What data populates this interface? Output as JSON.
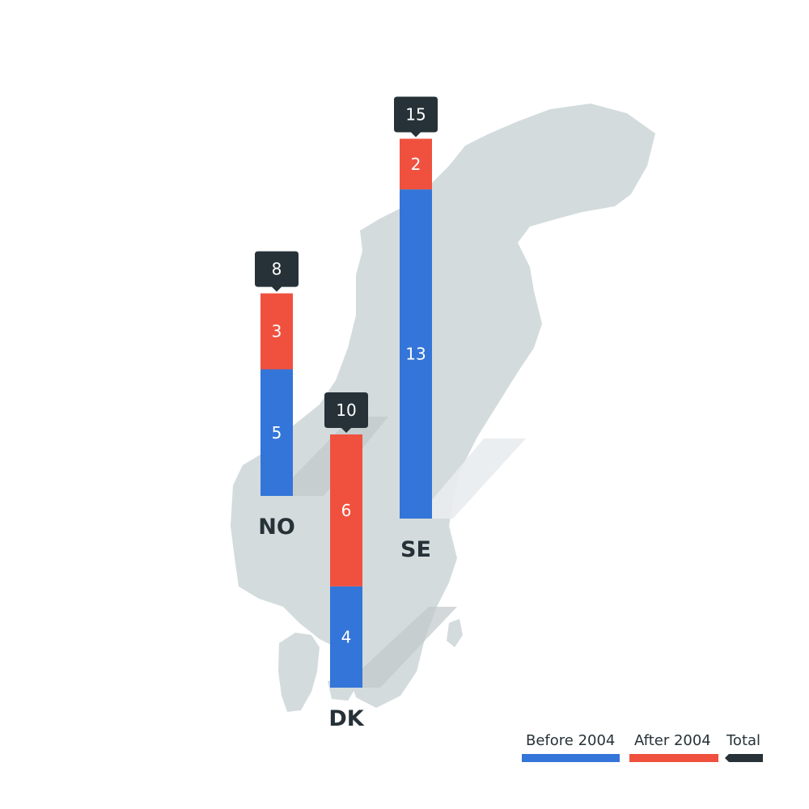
{
  "chart_data": {
    "type": "bar",
    "stacked": true,
    "categories": [
      "NO",
      "DK",
      "SE"
    ],
    "series": [
      {
        "name": "Before 2004",
        "values": [
          5,
          4,
          13
        ],
        "color": "#3375d8"
      },
      {
        "name": "After 2004",
        "values": [
          3,
          6,
          2
        ],
        "color": "#f0513f"
      }
    ],
    "totals": {
      "name": "Total",
      "values": [
        8,
        10,
        15
      ],
      "color": "#263238"
    },
    "legend_position": "bottom-right",
    "background_map": "scandinavia",
    "map_color": "#d3dbdd"
  }
}
